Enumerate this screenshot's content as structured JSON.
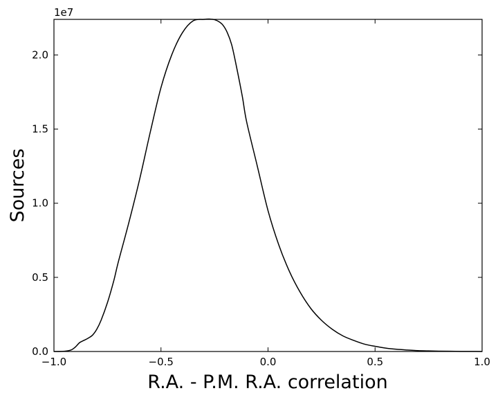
{
  "chart_data": {
    "type": "line",
    "title": "",
    "xlabel": "R.A. - P.M. R.A. correlation",
    "ylabel": "Sources",
    "y_offset_label": "1e7",
    "xlim": [
      -1.0,
      1.0
    ],
    "ylim": [
      0,
      22400000
    ],
    "grid": false,
    "x_ticks": [
      -1.0,
      -0.5,
      0.0,
      0.5,
      1.0
    ],
    "x_tick_labels": [
      "−1.0",
      "−0.5",
      "0.0",
      "0.5",
      "1.0"
    ],
    "y_ticks": [
      0,
      5000000,
      10000000,
      15000000,
      20000000
    ],
    "y_tick_labels": [
      "0.0",
      "0.5",
      "1.0",
      "1.5",
      "2.0"
    ],
    "series": [
      {
        "color": "#000000",
        "x": [
          -1.0,
          -0.95,
          -0.92,
          -0.9,
          -0.88,
          -0.86,
          -0.84,
          -0.82,
          -0.8,
          -0.78,
          -0.75,
          -0.72,
          -0.7,
          -0.65,
          -0.6,
          -0.55,
          -0.5,
          -0.45,
          -0.4,
          -0.35,
          -0.3,
          -0.27,
          -0.25,
          -0.23,
          -0.21,
          -0.19,
          -0.17,
          -0.15,
          -0.12,
          -0.1,
          -0.05,
          0.0,
          0.05,
          0.1,
          0.15,
          0.2,
          0.25,
          0.3,
          0.35,
          0.4,
          0.45,
          0.5,
          0.55,
          0.6,
          0.65,
          0.7,
          0.75,
          0.8,
          0.85,
          0.9,
          0.95,
          1.0
        ],
        "y": [
          0,
          20000,
          100000,
          300000,
          600000,
          750000,
          900000,
          1100000,
          1500000,
          2100000,
          3300000,
          4800000,
          6000000,
          8700000,
          11600000,
          14800000,
          17800000,
          20000000,
          21500000,
          22300000,
          22400000,
          22420000,
          22380000,
          22250000,
          22000000,
          21500000,
          20700000,
          19400000,
          17200000,
          15500000,
          12500000,
          9500000,
          7200000,
          5400000,
          4000000,
          2900000,
          2100000,
          1500000,
          1050000,
          750000,
          500000,
          350000,
          230000,
          150000,
          100000,
          60000,
          40000,
          25000,
          15000,
          8000,
          4000,
          2000
        ]
      }
    ]
  }
}
